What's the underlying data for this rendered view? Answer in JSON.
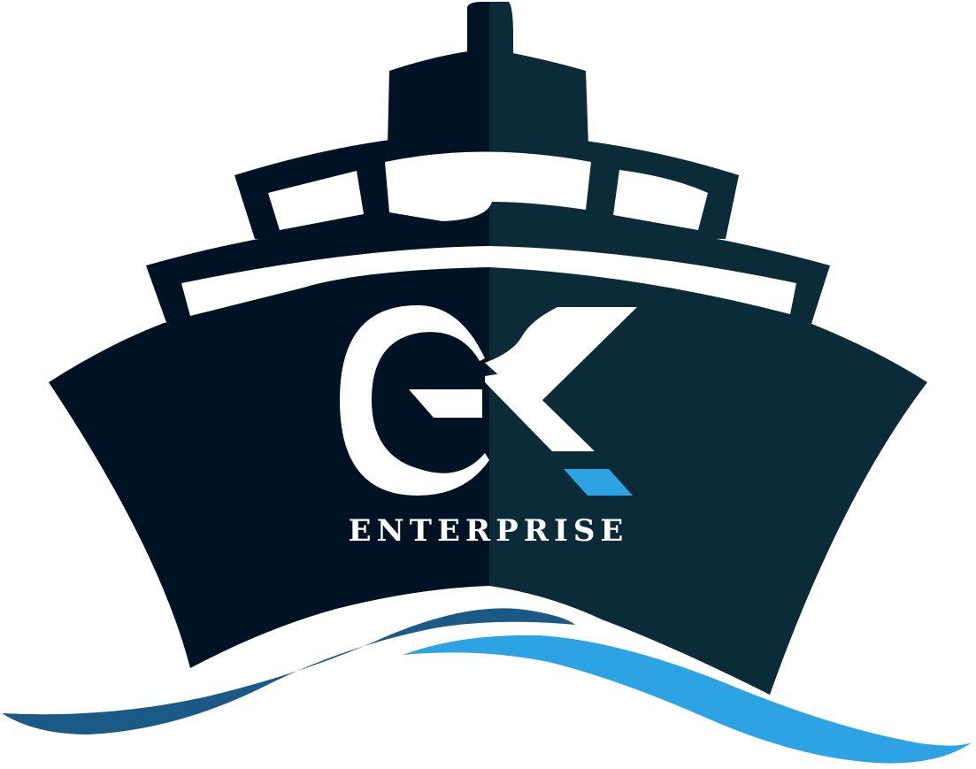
{
  "logo": {
    "monogram": "GK",
    "wordmark": "ENTERPRISE",
    "colors": {
      "hull_left": "#001324",
      "hull_right": "#0c2b38",
      "wave_dark": "#1b5a87",
      "wave_light": "#2ea3e3",
      "accent": "#2ea3e3",
      "window": "#ffffff"
    }
  }
}
